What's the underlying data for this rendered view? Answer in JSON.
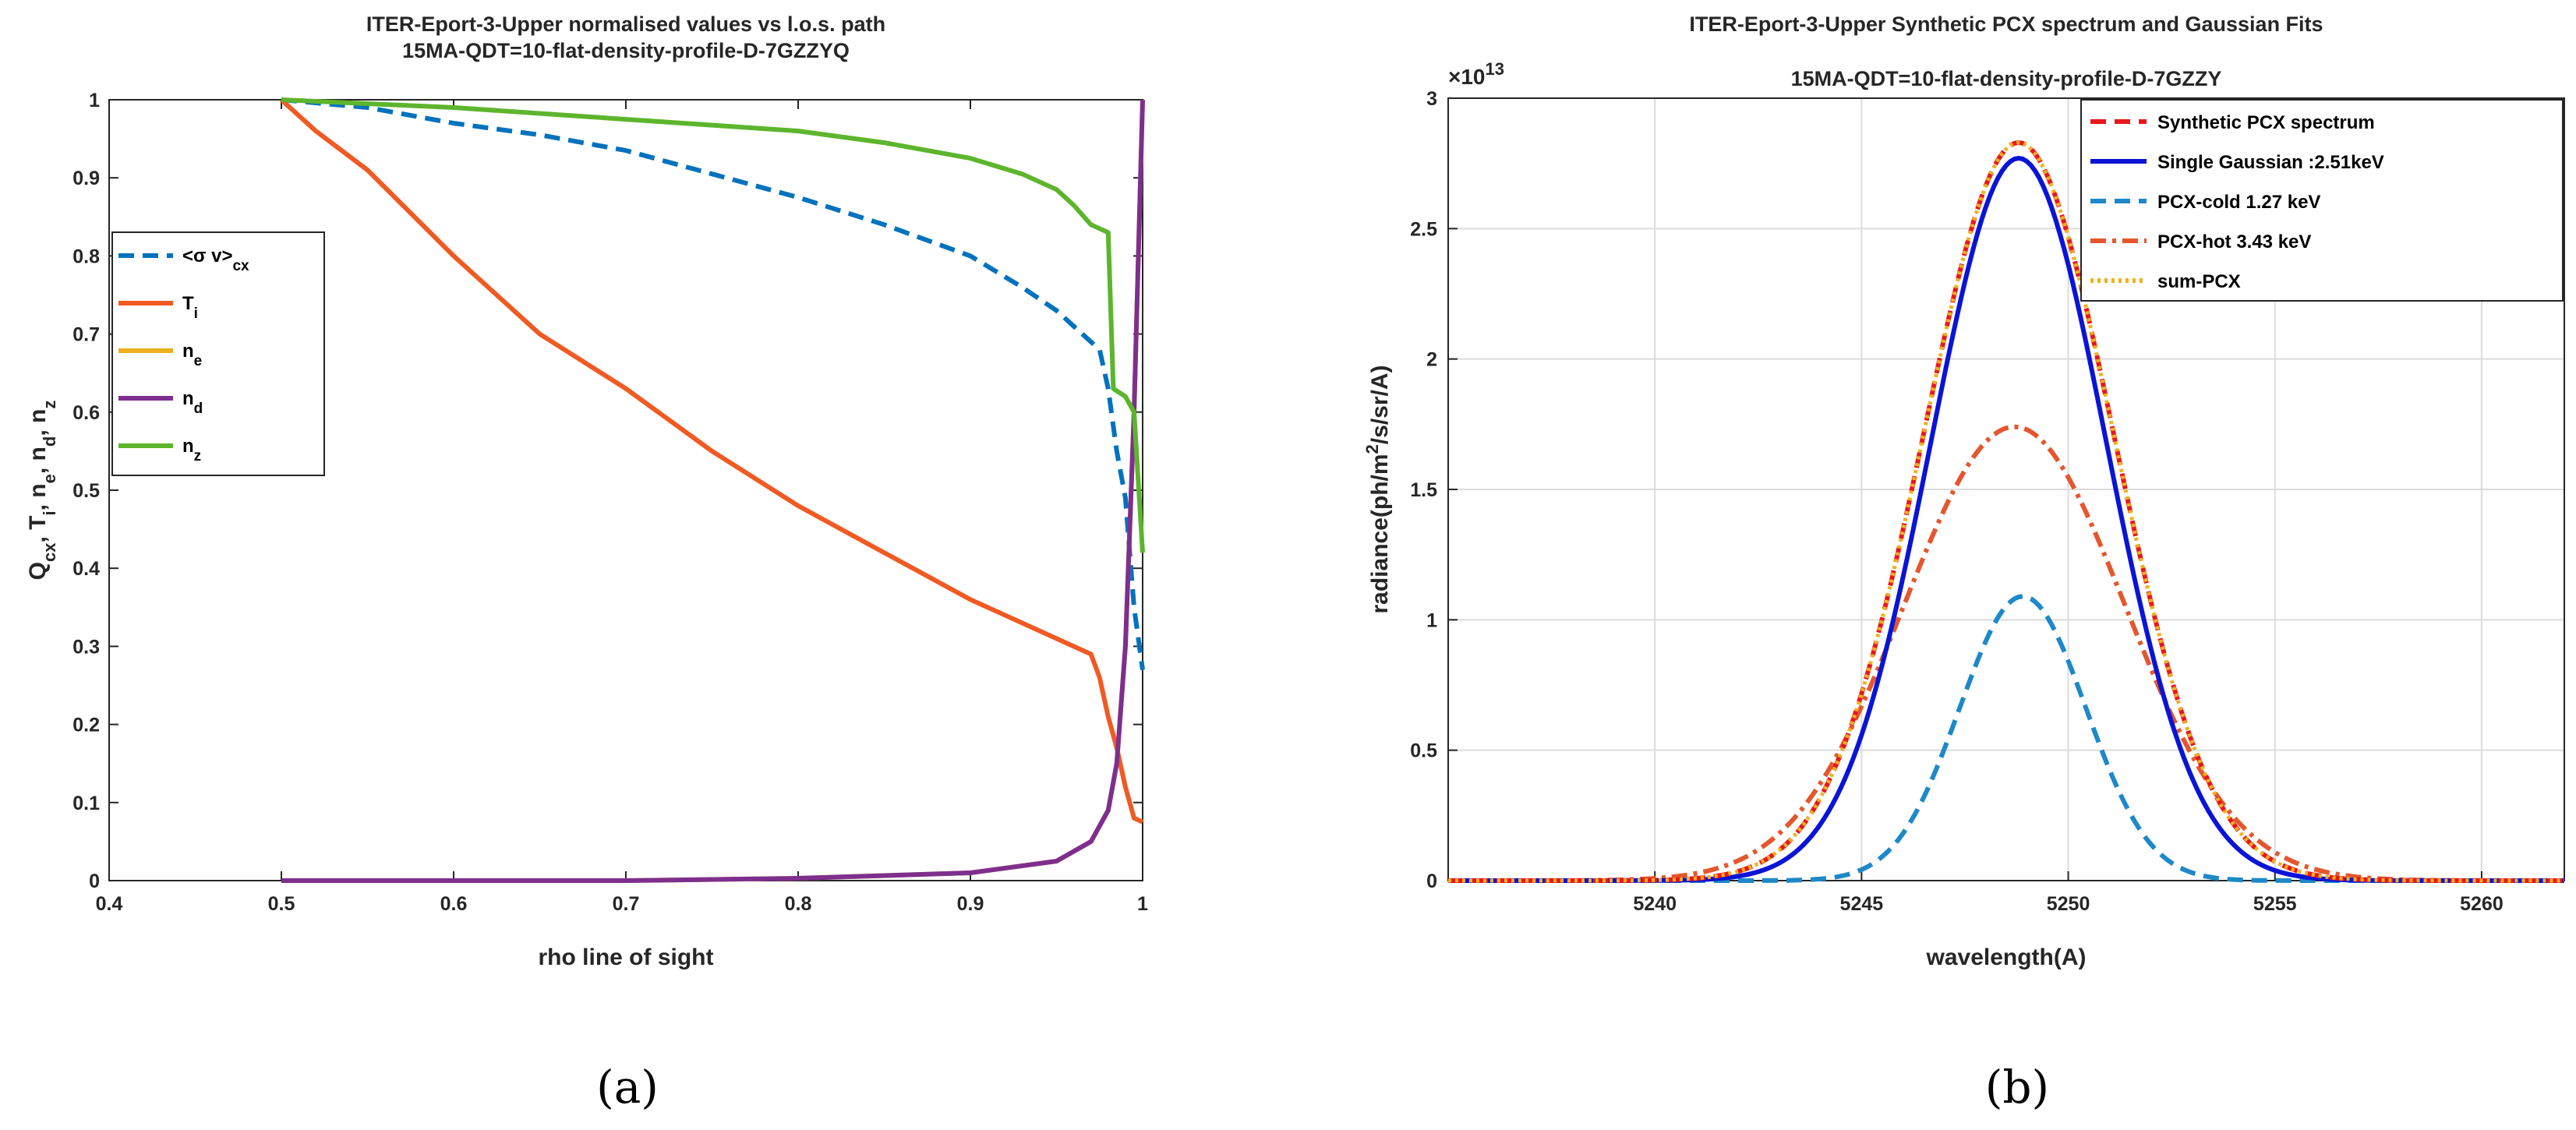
{
  "chart_data": [
    {
      "type": "line",
      "title": "ITER-Eport-3-Upper normalised values vs l.o.s. path",
      "subtitle": "15MA-QDT=10-flat-density-profile-D-7GZZYQ",
      "xlabel": "rho line of sight",
      "ylabel": "Q_cx, T_i, n_e, n_d, n_z",
      "ylabel_parts": {
        "q": "Q",
        "q_sub": "cx",
        "t": ", T",
        "t_sub": "i",
        "e": ", n",
        "e_sub": "e",
        "d": ", n",
        "d_sub": "d",
        "z": ", n",
        "z_sub": "z"
      },
      "xlim": [
        0.4,
        1.0
      ],
      "ylim": [
        0,
        1
      ],
      "xticks": [
        "0.4",
        "0.5",
        "0.6",
        "0.7",
        "0.8",
        "0.9",
        "1"
      ],
      "yticks": [
        "0",
        "0.1",
        "0.2",
        "0.3",
        "0.4",
        "0.5",
        "0.6",
        "0.7",
        "0.8",
        "0.9",
        "1"
      ],
      "grid": false,
      "legend_position": "left",
      "caption": "(a)",
      "series": [
        {
          "name": "<σ v>",
          "sub": "cx",
          "color": "#0072BD",
          "dash": "dashed",
          "x": [
            0.5,
            0.55,
            0.6,
            0.65,
            0.7,
            0.75,
            0.8,
            0.85,
            0.9,
            0.93,
            0.95,
            0.96,
            0.97,
            0.975,
            0.98,
            0.985,
            0.99,
            0.995,
            1.0
          ],
          "y": [
            1.0,
            0.99,
            0.97,
            0.955,
            0.935,
            0.905,
            0.875,
            0.84,
            0.8,
            0.76,
            0.73,
            0.71,
            0.69,
            0.68,
            0.63,
            0.55,
            0.49,
            0.35,
            0.27
          ]
        },
        {
          "name": "T",
          "sub": "i",
          "color": "#F05A23",
          "dash": "solid",
          "x": [
            0.5,
            0.52,
            0.55,
            0.6,
            0.65,
            0.7,
            0.75,
            0.8,
            0.85,
            0.9,
            0.95,
            0.97,
            0.975,
            0.98,
            0.985,
            0.99,
            0.995,
            1.0
          ],
          "y": [
            1.0,
            0.96,
            0.91,
            0.8,
            0.7,
            0.63,
            0.55,
            0.48,
            0.42,
            0.36,
            0.31,
            0.29,
            0.26,
            0.21,
            0.17,
            0.12,
            0.08,
            0.075
          ]
        },
        {
          "name": "n",
          "sub": "e",
          "color": "#EDB120",
          "dash": "solid",
          "x": [
            0.5,
            0.6,
            0.7,
            0.8,
            0.9,
            0.95,
            0.97,
            0.98,
            0.985,
            0.99,
            0.995,
            1.0
          ],
          "y": [
            0.0,
            0.0,
            0.0,
            0.003,
            0.01,
            0.025,
            0.05,
            0.09,
            0.15,
            0.3,
            0.6,
            1.0
          ]
        },
        {
          "name": "n",
          "sub": "d",
          "color": "#7E2F8E",
          "dash": "solid",
          "x": [
            0.5,
            0.6,
            0.7,
            0.8,
            0.9,
            0.95,
            0.97,
            0.98,
            0.985,
            0.99,
            0.995,
            1.0
          ],
          "y": [
            0.0,
            0.0,
            0.0,
            0.003,
            0.01,
            0.025,
            0.05,
            0.09,
            0.15,
            0.3,
            0.6,
            1.0
          ]
        },
        {
          "name": "n",
          "sub": "z",
          "color": "#5DB52D",
          "dash": "solid",
          "x": [
            0.5,
            0.6,
            0.7,
            0.8,
            0.85,
            0.9,
            0.93,
            0.95,
            0.96,
            0.97,
            0.98,
            0.983,
            0.99,
            0.995,
            1.0
          ],
          "y": [
            1.0,
            0.99,
            0.975,
            0.96,
            0.945,
            0.925,
            0.905,
            0.885,
            0.865,
            0.84,
            0.83,
            0.63,
            0.62,
            0.6,
            0.42
          ]
        }
      ]
    },
    {
      "type": "line",
      "title": "ITER-Eport-3-Upper Synthetic PCX spectrum and Gaussian Fits",
      "subtitle": "15MA-QDT=10-flat-density-profile-D-7GZZY",
      "xlabel": "wavelength(A)",
      "ylabel": "radiance(ph/m²/s/sr/A)",
      "ylabel_parts": {
        "pre": "radiance(ph/m",
        "sup": "2",
        "post": "/s/sr/A)"
      },
      "exponent": {
        "base": "×10",
        "power": "13"
      },
      "xlim": [
        5235,
        5262
      ],
      "ylim": [
        0,
        3
      ],
      "y_scale": 10000000000000.0,
      "xticks": [
        "5240",
        "5245",
        "5250",
        "5255",
        "5260"
      ],
      "yticks": [
        "0",
        "0.5",
        "1",
        "1.5",
        "2",
        "2.5",
        "3"
      ],
      "grid": true,
      "legend_position": "top-right",
      "caption": "(b)",
      "series": [
        {
          "name": "Synthetic PCX spectrum",
          "color": "#E8171A",
          "dash": "dashed",
          "gauss": {
            "amp": 2.83,
            "center": 5248.8,
            "fwhm": 5.4
          }
        },
        {
          "name": "Single Gaussian :2.51keV",
          "color": "#0A14D6",
          "dash": "solid",
          "gauss": {
            "amp": 2.77,
            "center": 5248.8,
            "fwhm": 5.0
          }
        },
        {
          "name": "PCX-cold 1.27 keV",
          "color": "#1E88C8",
          "dash": "dashed",
          "gauss": {
            "amp": 1.09,
            "center": 5248.9,
            "fwhm": 3.6
          }
        },
        {
          "name": "PCX-hot  3.43 keV",
          "color": "#E4572E",
          "dash": "dashdot",
          "gauss": {
            "amp": 1.74,
            "center": 5248.7,
            "fwhm": 6.3
          }
        },
        {
          "name": "sum-PCX",
          "color": "#F2B01E",
          "dash": "dotted",
          "gauss": {
            "amp": 2.83,
            "center": 5248.8,
            "fwhm": 5.4
          }
        }
      ]
    }
  ]
}
